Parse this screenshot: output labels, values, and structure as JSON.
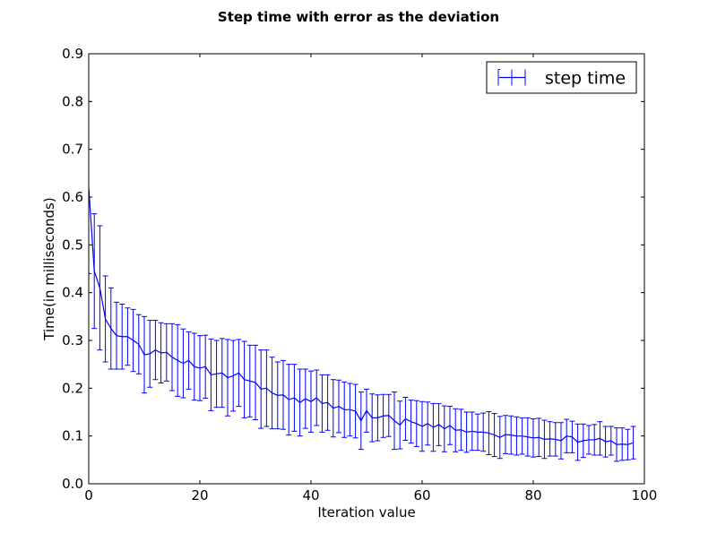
{
  "chart_data": {
    "type": "line",
    "title": "Step time with error as the deviation",
    "xlabel": "Iteration value",
    "ylabel": "Time(in milliseconds)",
    "xlim": [
      0,
      100
    ],
    "ylim": [
      0.0,
      0.9
    ],
    "xticks": [
      "0",
      "20",
      "40",
      "60",
      "80",
      "100"
    ],
    "yticks": [
      "0.0",
      "0.1",
      "0.2",
      "0.3",
      "0.4",
      "0.5",
      "0.6",
      "0.7",
      "0.8",
      "0.9"
    ],
    "grid": false,
    "legend_position": "top-right",
    "color": "#0000ff",
    "series": [
      {
        "name": "step time",
        "x": [
          0,
          1,
          2,
          3,
          4,
          5,
          6,
          7,
          8,
          9,
          10,
          11,
          12,
          13,
          14,
          15,
          16,
          17,
          18,
          19,
          20,
          21,
          22,
          23,
          24,
          25,
          26,
          27,
          28,
          29,
          30,
          31,
          32,
          33,
          34,
          35,
          36,
          37,
          38,
          39,
          40,
          41,
          42,
          43,
          44,
          45,
          46,
          47,
          48,
          49,
          50,
          51,
          52,
          53,
          54,
          55,
          56,
          57,
          58,
          59,
          60,
          61,
          62,
          63,
          64,
          65,
          66,
          67,
          68,
          69,
          70,
          71,
          72,
          73,
          74,
          75,
          76,
          77,
          78,
          79,
          80,
          81,
          82,
          83,
          84,
          85,
          86,
          87,
          88,
          89,
          90,
          91,
          92,
          93,
          94,
          95,
          96,
          97,
          98
        ],
        "y": [
          0.62,
          0.445,
          0.41,
          0.345,
          0.325,
          0.31,
          0.308,
          0.308,
          0.3,
          0.292,
          0.27,
          0.272,
          0.28,
          0.274,
          0.275,
          0.265,
          0.258,
          0.252,
          0.258,
          0.245,
          0.242,
          0.245,
          0.228,
          0.23,
          0.232,
          0.222,
          0.226,
          0.232,
          0.218,
          0.215,
          0.212,
          0.198,
          0.2,
          0.19,
          0.185,
          0.186,
          0.176,
          0.18,
          0.17,
          0.178,
          0.172,
          0.18,
          0.168,
          0.17,
          0.158,
          0.162,
          0.155,
          0.155,
          0.152,
          0.132,
          0.153,
          0.138,
          0.138,
          0.142,
          0.143,
          0.132,
          0.123,
          0.136,
          0.13,
          0.126,
          0.12,
          0.126,
          0.118,
          0.124,
          0.115,
          0.122,
          0.112,
          0.113,
          0.108,
          0.11,
          0.108,
          0.108,
          0.106,
          0.102,
          0.097,
          0.103,
          0.102,
          0.1,
          0.1,
          0.098,
          0.096,
          0.097,
          0.093,
          0.094,
          0.093,
          0.09,
          0.1,
          0.098,
          0.087,
          0.09,
          0.092,
          0.092,
          0.095,
          0.088,
          0.09,
          0.082,
          0.083,
          0.082,
          0.086
        ],
        "err": [
          0.18,
          0.12,
          0.13,
          0.09,
          0.085,
          0.07,
          0.068,
          0.06,
          0.065,
          0.062,
          0.08,
          0.07,
          0.062,
          0.063,
          0.06,
          0.07,
          0.075,
          0.072,
          0.06,
          0.07,
          0.068,
          0.066,
          0.075,
          0.07,
          0.072,
          0.08,
          0.074,
          0.07,
          0.08,
          0.075,
          0.078,
          0.082,
          0.08,
          0.075,
          0.07,
          0.072,
          0.074,
          0.07,
          0.07,
          0.062,
          0.064,
          0.058,
          0.06,
          0.058,
          0.06,
          0.055,
          0.058,
          0.055,
          0.056,
          0.06,
          0.045,
          0.05,
          0.048,
          0.045,
          0.044,
          0.06,
          0.05,
          0.045,
          0.045,
          0.048,
          0.052,
          0.045,
          0.05,
          0.044,
          0.048,
          0.04,
          0.045,
          0.043,
          0.042,
          0.04,
          0.038,
          0.04,
          0.045,
          0.045,
          0.044,
          0.04,
          0.04,
          0.04,
          0.038,
          0.04,
          0.04,
          0.04,
          0.04,
          0.036,
          0.035,
          0.038,
          0.035,
          0.033,
          0.038,
          0.035,
          0.03,
          0.032,
          0.035,
          0.032,
          0.03,
          0.035,
          0.034,
          0.032,
          0.034
        ]
      }
    ]
  }
}
